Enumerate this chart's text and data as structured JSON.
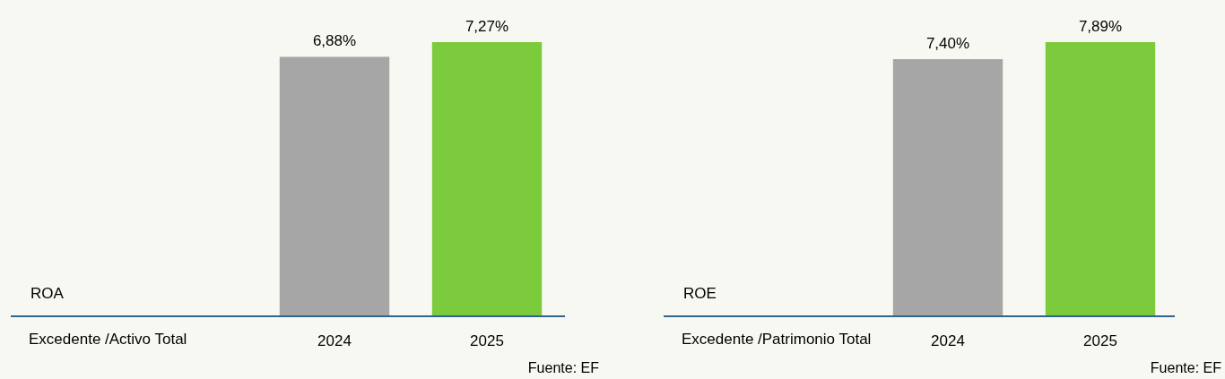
{
  "chart_data": [
    {
      "type": "bar",
      "ylabel": "ROA",
      "xlabel": "Excedente /Activo Total",
      "categories": [
        "2024",
        "2025"
      ],
      "values": [
        6.88,
        7.27
      ],
      "colors": [
        "#a6a6a6",
        "#7ccb3c"
      ],
      "value_labels": [
        "6,88%",
        "7,27%"
      ],
      "annotations": [
        "Fuente: EF"
      ]
    },
    {
      "type": "bar",
      "ylabel": "ROE",
      "xlabel": "Excedente /Patrimonio Total",
      "categories": [
        "2024",
        "2025"
      ],
      "values": [
        7.4,
        7.89
      ],
      "colors": [
        "#a6a6a6",
        "#7ccb3c"
      ],
      "value_labels": [
        "7,40%",
        "7,89%"
      ],
      "annotations": [
        "Fuente: EF"
      ]
    }
  ]
}
